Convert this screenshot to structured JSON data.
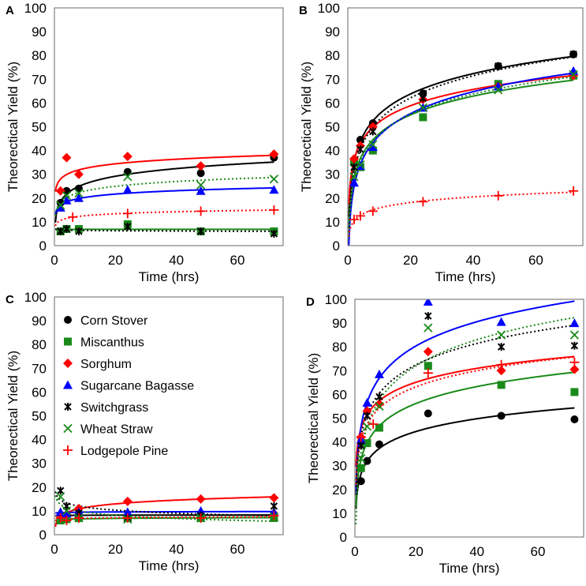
{
  "chart_data": {
    "type": "scatter",
    "panels": [
      {
        "label": "A",
        "xlabel": "Time (hrs)",
        "ylabel": "Theorectical Yield (%)",
        "xlim": [
          0,
          75
        ],
        "ylim": [
          0,
          100
        ],
        "xticks": [
          0,
          20,
          40,
          60
        ],
        "yticks": [
          0,
          10,
          20,
          30,
          40,
          50,
          60,
          70,
          80,
          90,
          100
        ],
        "series": [
          {
            "name": "Corn Stover",
            "x": [
              2,
              4,
              8,
              24,
              48,
              72
            ],
            "y": [
              18,
              23,
              24,
              31,
              30.5,
              37
            ]
          },
          {
            "name": "Miscanthus",
            "x": [
              2,
              4,
              8,
              24,
              48,
              72
            ],
            "y": [
              6,
              7,
              7,
              9,
              6,
              6
            ]
          },
          {
            "name": "Sorghum",
            "x": [
              2,
              4,
              8,
              24,
              48,
              72
            ],
            "y": [
              23,
              37,
              30,
              37.5,
              33.5,
              38.5
            ]
          },
          {
            "name": "Sugarcane Bagasse",
            "x": [
              2,
              4,
              8,
              24,
              48,
              72
            ],
            "y": [
              16,
              19,
              20,
              23.5,
              23,
              23.5
            ]
          },
          {
            "name": "Switchgrass",
            "x": [
              2,
              4,
              8,
              24,
              48,
              72
            ],
            "y": [
              6,
              7,
              6,
              8,
              6,
              5
            ]
          },
          {
            "name": "Wheat Straw",
            "x": [
              2,
              4,
              8,
              24,
              48,
              72
            ],
            "y": [
              17,
              21,
              22,
              29,
              25.5,
              28
            ]
          },
          {
            "name": "Lodgepole Pine",
            "x": [
              6,
              24,
              48,
              72
            ],
            "y": [
              12,
              13.5,
              14.5,
              15
            ]
          }
        ]
      },
      {
        "label": "B",
        "xlabel": "Time (hrs)",
        "ylabel": "Theorectical Yield (%)",
        "xlim": [
          0,
          75
        ],
        "ylim": [
          0,
          100
        ],
        "xticks": [
          0,
          20,
          40,
          60
        ],
        "yticks": [
          0,
          10,
          20,
          30,
          40,
          50,
          60,
          70,
          80,
          90,
          100
        ],
        "series": [
          {
            "name": "Corn Stover",
            "x": [
              2,
              4,
              8,
              24,
              48,
              72
            ],
            "y": [
              36,
              44.5,
              51.5,
              64,
              75.5,
              80.5
            ]
          },
          {
            "name": "Miscanthus",
            "x": [
              2,
              4,
              8,
              24,
              48,
              72
            ],
            "y": [
              35,
              33,
              40,
              54,
              68,
              71.5
            ]
          },
          {
            "name": "Sorghum",
            "x": [
              2,
              4,
              8,
              24,
              48,
              72
            ],
            "y": [
              36.5,
              42,
              50,
              61.5,
              67,
              71.5
            ]
          },
          {
            "name": "Sugarcane Bagasse",
            "x": [
              2,
              4,
              8,
              24,
              48,
              72
            ],
            "y": [
              26.5,
              33.5,
              41.5,
              58,
              67,
              73.5
            ]
          },
          {
            "name": "Switchgrass",
            "x": [
              2,
              4,
              8,
              24,
              48,
              72
            ],
            "y": [
              33,
              40.5,
              48,
              62,
              75.5,
              80.5
            ]
          },
          {
            "name": "Wheat Straw",
            "x": [
              2,
              4,
              8,
              24,
              48,
              72
            ],
            "y": [
              29,
              34,
              42.5,
              58,
              65.5,
              72
            ]
          },
          {
            "name": "Lodgepole Pine",
            "x": [
              2,
              4,
              8,
              24,
              48,
              72
            ],
            "y": [
              11,
              12.5,
              14.5,
              18.5,
              21,
              23
            ]
          }
        ]
      },
      {
        "label": "C",
        "xlabel": "Time (hrs)",
        "ylabel": "Theorectical Yield (%)",
        "xlim": [
          0,
          75
        ],
        "ylim": [
          0,
          100
        ],
        "xticks": [
          0,
          20,
          40,
          60
        ],
        "yticks": [
          0,
          10,
          20,
          30,
          40,
          50,
          60,
          70,
          80,
          90,
          100
        ],
        "series": [
          {
            "name": "Corn Stover",
            "x": [
              2,
              4,
              8,
              24,
              48,
              72
            ],
            "y": [
              8,
              8,
              8.5,
              8,
              8,
              8.5
            ]
          },
          {
            "name": "Miscanthus",
            "x": [
              2,
              4,
              8,
              24,
              48,
              72
            ],
            "y": [
              6,
              6.5,
              7,
              7,
              7,
              7
            ]
          },
          {
            "name": "Sorghum",
            "x": [
              2,
              4,
              8,
              24,
              48,
              72
            ],
            "y": [
              8,
              8.5,
              11,
              14,
              15,
              15.5
            ]
          },
          {
            "name": "Sugarcane Bagasse",
            "x": [
              2,
              4,
              8,
              24,
              48,
              72
            ],
            "y": [
              9.5,
              9,
              9.5,
              9.5,
              10,
              9.5
            ]
          },
          {
            "name": "Switchgrass",
            "x": [
              2,
              4,
              8,
              24,
              48,
              72
            ],
            "y": [
              18.5,
              12,
              9,
              7,
              8,
              12
            ]
          },
          {
            "name": "Wheat Straw",
            "x": [
              2,
              4,
              8,
              24,
              48,
              72
            ],
            "y": [
              16,
              10,
              7,
              6.5,
              7,
              7.5
            ]
          },
          {
            "name": "Lodgepole Pine",
            "x": [
              2,
              4,
              8,
              24,
              48,
              72
            ],
            "y": [
              7,
              6,
              7,
              7,
              7,
              8
            ]
          }
        ]
      },
      {
        "label": "D",
        "xlabel": "Time (hrs)",
        "ylabel": "Theorectical Yield (%)",
        "xlim": [
          0,
          75
        ],
        "ylim": [
          0,
          100
        ],
        "xticks": [
          0,
          20,
          40,
          60
        ],
        "yticks": [
          0,
          10,
          20,
          30,
          40,
          50,
          60,
          70,
          80,
          90,
          100
        ],
        "series": [
          {
            "name": "Corn Stover",
            "x": [
              2,
              4,
              8,
              24,
              48,
              72
            ],
            "y": [
              23.5,
              32,
              39,
              52,
              51,
              49.5
            ]
          },
          {
            "name": "Miscanthus",
            "x": [
              2,
              4,
              8,
              24,
              48,
              72
            ],
            "y": [
              29,
              39.5,
              46,
              72,
              64,
              61
            ]
          },
          {
            "name": "Sorghum",
            "x": [
              2,
              4,
              8,
              24,
              48,
              72
            ],
            "y": [
              42,
              53,
              56,
              78,
              70,
              70.5
            ]
          },
          {
            "name": "Sugarcane Bagasse",
            "x": [
              2,
              4,
              8,
              24,
              48,
              72
            ],
            "y": [
              41,
              56.5,
              68.5,
              99,
              90.5,
              90
            ]
          },
          {
            "name": "Switchgrass",
            "x": [
              2,
              4,
              8,
              24,
              48,
              72
            ],
            "y": [
              38.5,
              51,
              59,
              93,
              80,
              80.5
            ]
          },
          {
            "name": "Wheat Straw",
            "x": [
              2,
              4,
              8,
              24,
              48,
              72
            ],
            "y": [
              33,
              46.5,
              55,
              88,
              85,
              85
            ]
          },
          {
            "name": "Lodgepole Pine",
            "x": [
              2,
              6,
              24,
              48,
              72
            ],
            "y": [
              42,
              47.5,
              69,
              72.5,
              73.5
            ]
          }
        ]
      }
    ],
    "legend": {
      "placement": "panel C, upper-left",
      "entries": [
        {
          "name": "Corn Stover",
          "marker": "circle",
          "color": "#000000",
          "line": "solid"
        },
        {
          "name": "Miscanthus",
          "marker": "square",
          "color": "#1a8a1a",
          "line": "solid"
        },
        {
          "name": "Sorghum",
          "marker": "diamond",
          "color": "#ff0000",
          "line": "solid"
        },
        {
          "name": "Sugarcane Bagasse",
          "marker": "triangle",
          "color": "#0000ff",
          "line": "solid"
        },
        {
          "name": "Switchgrass",
          "marker": "asterisk",
          "color": "#000000",
          "line": "dotted"
        },
        {
          "name": "Wheat Straw",
          "marker": "x",
          "color": "#1a8a1a",
          "line": "dotted"
        },
        {
          "name": "Lodgepole Pine",
          "marker": "plus",
          "color": "#ff0000",
          "line": "dotted"
        }
      ]
    }
  }
}
